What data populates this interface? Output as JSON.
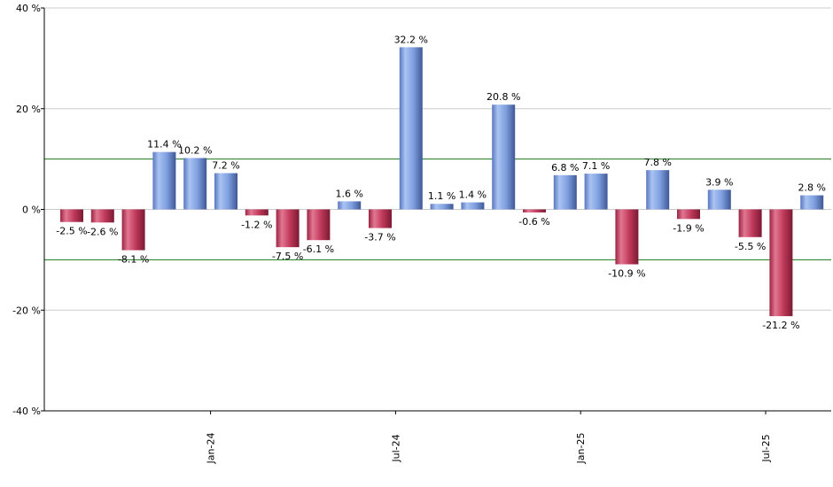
{
  "chart_data": {
    "type": "bar",
    "title": "",
    "xlabel": "",
    "ylabel": "",
    "ylim": [
      -40,
      40
    ],
    "yticks": [
      40,
      20,
      0,
      -20,
      -40
    ],
    "ytick_labels": [
      "40 %",
      "20 %",
      "0 %",
      "-20 %",
      "-40 %"
    ],
    "reference_lines": [
      10,
      -10
    ],
    "grid": true,
    "positive_color": "#7f9fdf",
    "negative_color": "#c0395a",
    "reference_line_color": "#1a7a1a",
    "grid_color": "#cccccc",
    "values": [
      -2.5,
      -2.6,
      -8.1,
      11.4,
      10.2,
      7.2,
      -1.2,
      -7.5,
      -6.1,
      1.6,
      -3.7,
      32.2,
      1.1,
      1.4,
      20.8,
      -0.6,
      6.8,
      7.1,
      -10.9,
      7.8,
      -1.9,
      3.9,
      -5.5,
      -21.2,
      2.8
    ],
    "data_labels": [
      "-2.5 %",
      "-2.6 %",
      "-8.1 %",
      "11.4 %",
      "10.2 %",
      "7.2 %",
      "-1.2 %",
      "-7.5 %",
      "-6.1 %",
      "1.6 %",
      "-3.7 %",
      "32.2 %",
      "1.1 %",
      "1.4 %",
      "20.8 %",
      "-0.6 %",
      "6.8 %",
      "7.1 %",
      "-10.9 %",
      "7.8 %",
      "-1.9 %",
      "3.9 %",
      "-5.5 %",
      "-21.2 %",
      "2.8 %"
    ],
    "xtick_labels": [
      {
        "label": "Jan-24",
        "after_bar_index": 4
      },
      {
        "label": "Jul-24",
        "after_bar_index": 10
      },
      {
        "label": "Jan-25",
        "after_bar_index": 16
      },
      {
        "label": "Jul-25",
        "after_bar_index": 22
      }
    ]
  }
}
